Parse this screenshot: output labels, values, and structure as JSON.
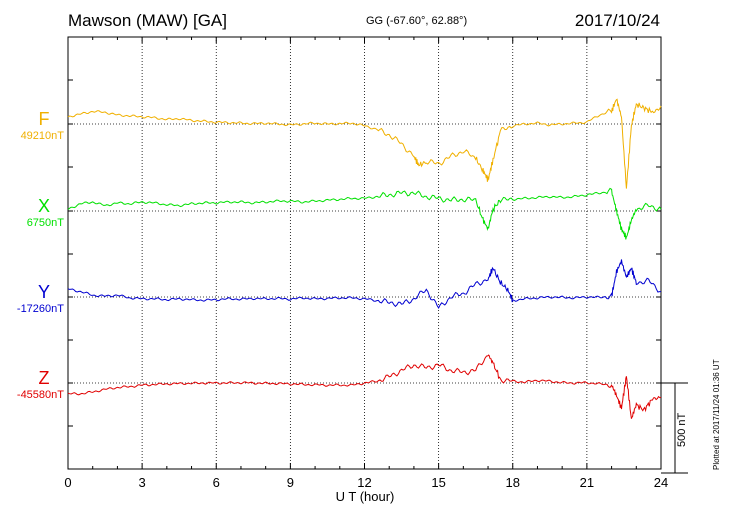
{
  "header": {
    "station": "Mawson (MAW)  [GA]",
    "coords": "GG (-67.60°,  62.88°)",
    "date": "2017/10/24"
  },
  "footer": {
    "plotted": "Plotted at 2017/11/24 01:36 UT",
    "scale_label": "500 nT"
  },
  "colors": {
    "F": "#f0b000",
    "X": "#00e000",
    "Y": "#0000d0",
    "Z": "#e00000"
  },
  "chart_data": {
    "type": "line",
    "xlabel": "U T (hour)",
    "xlim": [
      0,
      24
    ],
    "xticks": [
      0,
      3,
      6,
      9,
      12,
      15,
      18,
      21,
      24
    ],
    "grid": true,
    "scale_bar_nT": 500,
    "series": [
      {
        "name": "F",
        "baseline_label": "49210nT",
        "baseline": 49210,
        "color": "#f0b000",
        "x": [
          0,
          0.5,
          1,
          1.5,
          2,
          2.5,
          3,
          3.5,
          4,
          4.5,
          5,
          5.5,
          6,
          6.5,
          7,
          7.5,
          8,
          8.5,
          9,
          9.5,
          10,
          10.5,
          11,
          11.5,
          12,
          12.5,
          13,
          13.5,
          14,
          14.2,
          14.5,
          15,
          15.5,
          16,
          16.5,
          16.8,
          17,
          17.2,
          17.5,
          18,
          18.5,
          19,
          19.5,
          20,
          20.5,
          21,
          21.5,
          22,
          22.2,
          22.4,
          22.6,
          22.8,
          23,
          23.3,
          23.6,
          24
        ],
        "y": [
          49250,
          49265,
          49280,
          49275,
          49260,
          49255,
          49250,
          49245,
          49235,
          49240,
          49230,
          49225,
          49220,
          49218,
          49215,
          49212,
          49215,
          49210,
          49205,
          49210,
          49215,
          49210,
          49212,
          49215,
          49200,
          49180,
          49150,
          49100,
          49030,
          48980,
          49000,
          48990,
          49030,
          49060,
          49020,
          48950,
          48900,
          49010,
          49170,
          49200,
          49210,
          49215,
          49205,
          49210,
          49215,
          49220,
          49260,
          49280,
          49350,
          49250,
          48850,
          49200,
          49320,
          49300,
          49280,
          49310
        ]
      },
      {
        "name": "X",
        "baseline_label": "6750nT",
        "baseline": 6750,
        "color": "#00e000",
        "x": [
          0,
          0.5,
          1,
          1.5,
          2,
          2.5,
          3,
          3.5,
          4,
          4.5,
          5,
          5.5,
          6,
          6.5,
          7,
          7.5,
          8,
          8.5,
          9,
          9.5,
          10,
          10.5,
          11,
          11.5,
          12,
          12.5,
          13,
          13.5,
          14,
          14.5,
          15,
          15.5,
          16,
          16.5,
          16.8,
          17,
          17.2,
          17.5,
          18,
          18.5,
          19,
          19.5,
          20,
          20.5,
          21,
          21.5,
          22,
          22.2,
          22.4,
          22.6,
          22.8,
          23,
          23.5,
          24
        ],
        "y": [
          6760,
          6790,
          6800,
          6780,
          6795,
          6790,
          6800,
          6795,
          6785,
          6780,
          6790,
          6795,
          6795,
          6800,
          6800,
          6795,
          6800,
          6805,
          6805,
          6800,
          6805,
          6810,
          6815,
          6820,
          6820,
          6830,
          6840,
          6850,
          6850,
          6830,
          6820,
          6810,
          6815,
          6810,
          6700,
          6650,
          6760,
          6810,
          6815,
          6820,
          6825,
          6830,
          6825,
          6830,
          6840,
          6850,
          6860,
          6750,
          6650,
          6600,
          6700,
          6760,
          6780,
          6760
        ]
      },
      {
        "name": "Y",
        "baseline_label": "-17260nT",
        "baseline": -17260,
        "color": "#0000d0",
        "x": [
          0,
          0.5,
          1,
          1.5,
          2,
          2.5,
          3,
          3.5,
          4,
          4.5,
          5,
          5.5,
          6,
          6.5,
          7,
          7.5,
          8,
          8.5,
          9,
          9.5,
          10,
          10.5,
          11,
          11.5,
          12,
          12.5,
          13,
          13.5,
          14,
          14.5,
          15,
          15.5,
          16,
          16.5,
          17,
          17.2,
          17.5,
          17.8,
          18,
          18.5,
          19,
          19.5,
          20,
          20.5,
          21,
          21.5,
          22,
          22.2,
          22.4,
          22.6,
          22.8,
          23,
          23.5,
          24
        ],
        "y": [
          -17215,
          -17230,
          -17250,
          -17255,
          -17250,
          -17265,
          -17270,
          -17270,
          -17275,
          -17270,
          -17275,
          -17278,
          -17275,
          -17270,
          -17272,
          -17268,
          -17270,
          -17268,
          -17272,
          -17265,
          -17270,
          -17268,
          -17265,
          -17265,
          -17270,
          -17280,
          -17290,
          -17300,
          -17270,
          -17220,
          -17320,
          -17260,
          -17240,
          -17190,
          -17160,
          -17100,
          -17180,
          -17220,
          -17280,
          -17270,
          -17265,
          -17260,
          -17262,
          -17265,
          -17260,
          -17262,
          -17255,
          -17120,
          -17060,
          -17150,
          -17100,
          -17180,
          -17170,
          -17230
        ]
      },
      {
        "name": "Z",
        "baseline_label": "-45580nT",
        "baseline": -45580,
        "color": "#e00000",
        "x": [
          0,
          0.5,
          1,
          1.5,
          2,
          2.5,
          3,
          3.5,
          4,
          4.5,
          5,
          5.5,
          6,
          6.5,
          7,
          7.5,
          8,
          8.5,
          9,
          9.5,
          10,
          10.5,
          11,
          11.5,
          12,
          12.5,
          13,
          13.5,
          14,
          14.5,
          15,
          15.5,
          16,
          16.5,
          17,
          17.2,
          17.5,
          18,
          18.5,
          19,
          19.5,
          20,
          20.5,
          21,
          21.5,
          22,
          22.2,
          22.4,
          22.6,
          22.8,
          23,
          23.3,
          23.6,
          24
        ],
        "y": [
          -45640,
          -45640,
          -45630,
          -45615,
          -45605,
          -45600,
          -45592,
          -45588,
          -45585,
          -45583,
          -45582,
          -45580,
          -45580,
          -45580,
          -45578,
          -45580,
          -45582,
          -45583,
          -45585,
          -45588,
          -45590,
          -45592,
          -45592,
          -45592,
          -45580,
          -45570,
          -45545,
          -45510,
          -45480,
          -45495,
          -45480,
          -45510,
          -45520,
          -45510,
          -45420,
          -45470,
          -45560,
          -45570,
          -45575,
          -45565,
          -45570,
          -45578,
          -45580,
          -45578,
          -45585,
          -45590,
          -45650,
          -45720,
          -45540,
          -45780,
          -45700,
          -45730,
          -45680,
          -45660
        ]
      }
    ]
  }
}
